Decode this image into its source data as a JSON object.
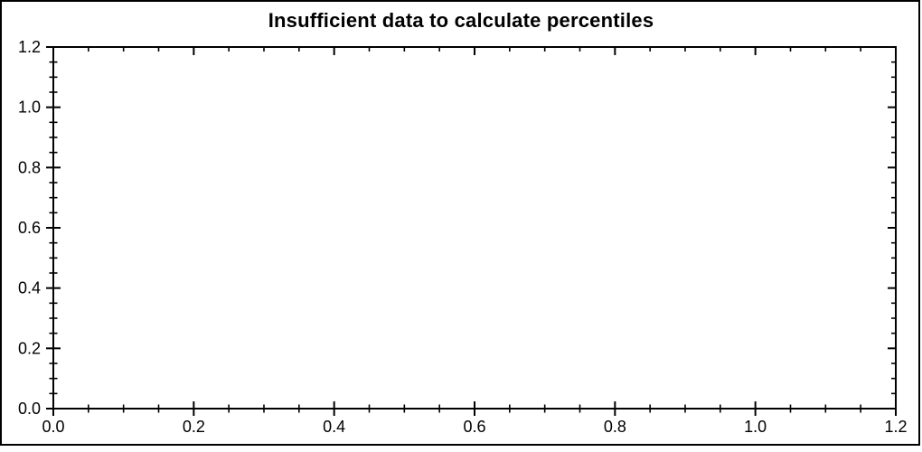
{
  "chart_data": {
    "type": "scatter",
    "title": "Insufficient data to calculate percentiles",
    "series": [],
    "points": [],
    "xlabel": "",
    "ylabel": "",
    "xlim": [
      0.0,
      1.2
    ],
    "ylim": [
      0.0,
      1.2
    ],
    "x_tick_values": [
      0.0,
      0.2,
      0.4,
      0.6,
      0.8,
      1.0,
      1.2
    ],
    "x_tick_labels": [
      "0.0",
      "0.2",
      "0.4",
      "0.6",
      "0.8",
      "1.0",
      "1.2"
    ],
    "y_tick_values": [
      0.0,
      0.2,
      0.4,
      0.6,
      0.8,
      1.0,
      1.2
    ],
    "y_tick_labels": [
      "0.0",
      "0.2",
      "0.4",
      "0.6",
      "0.8",
      "1.0",
      "1.2"
    ],
    "minor_tick_step": 0.05,
    "grid": false,
    "legend": false,
    "plot_is_empty": true,
    "frame_style": "full box; left/bottom ticks cross axis, top/right ticks point inward"
  },
  "colors": {
    "axis": "#000000",
    "text": "#000000",
    "background": "#ffffff"
  }
}
